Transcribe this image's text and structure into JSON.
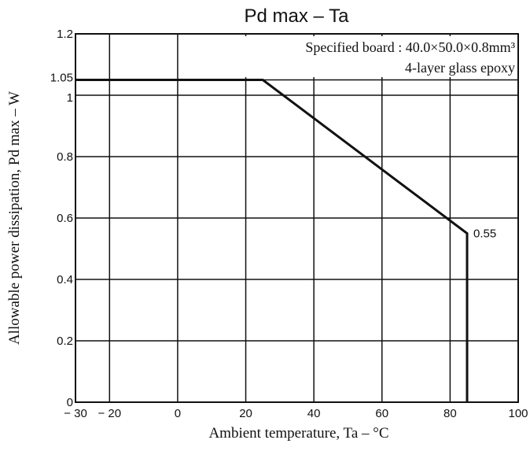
{
  "chart_data": {
    "type": "line",
    "title": "Pd max  –  Ta",
    "xlabel": "Ambient temperature,  Ta  –  °C",
    "ylabel": "Allowable power dissipation,  Pd max  –  W",
    "xlim": [
      -30,
      100
    ],
    "ylim": [
      0,
      1.2
    ],
    "x_ticks": [
      -30,
      -20,
      0,
      20,
      40,
      60,
      80,
      100
    ],
    "x_tick_labels": [
      "− 30",
      "− 20",
      "0",
      "20",
      "40",
      "60",
      "80",
      "100"
    ],
    "y_ticks": [
      0,
      0.2,
      0.4,
      0.6,
      0.8,
      1,
      1.05,
      1.2
    ],
    "y_tick_labels": [
      "0",
      "0.2",
      "0.4",
      "0.6",
      "0.8",
      "1",
      "1.05",
      "1.2"
    ],
    "grid": true,
    "series": [
      {
        "x": [
          -30,
          25,
          85,
          85
        ],
        "y": [
          1.05,
          1.05,
          0.55,
          0
        ]
      }
    ],
    "annotations": [
      {
        "text": "Specified board : 40.0×50.0×0.8mm³"
      },
      {
        "text": "4-layer glass epoxy"
      },
      {
        "text": "0.55",
        "x": 85,
        "y": 0.55
      }
    ]
  }
}
